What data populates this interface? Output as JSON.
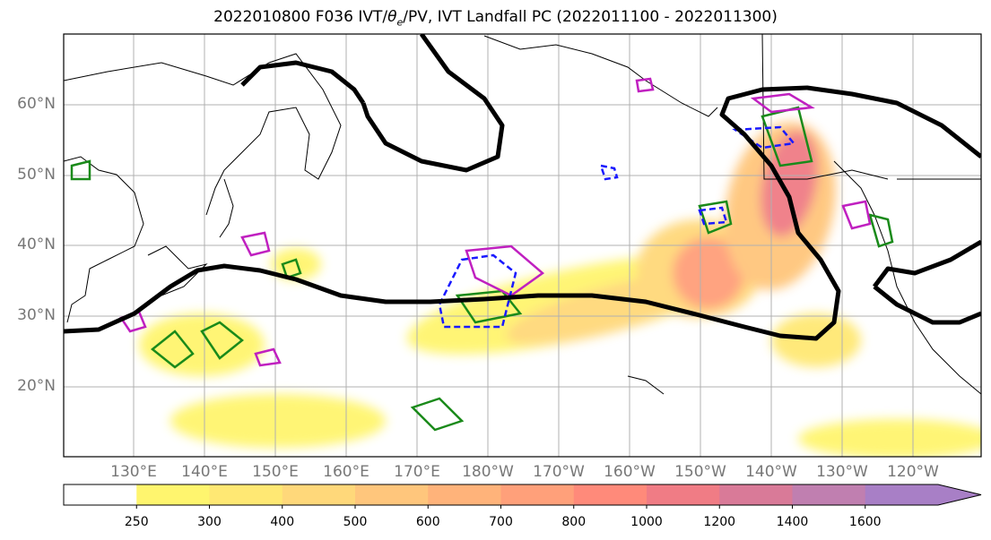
{
  "title": {
    "prefix": "2022010800 F036 IVT/",
    "theta": "θ",
    "sub": "e",
    "suffix": "/PV, IVT Landfall PC (2022011100 - 2022011300)"
  },
  "lat_labels": [
    "60°N",
    "50°N",
    "40°N",
    "30°N",
    "20°N"
  ],
  "lon_labels": [
    "130°E",
    "140°E",
    "150°E",
    "160°E",
    "170°E",
    "180°W",
    "170°W",
    "160°W",
    "150°W",
    "140°W",
    "130°W",
    "120°W"
  ],
  "colorbar": {
    "levels": [
      "250",
      "300",
      "400",
      "500",
      "600",
      "700",
      "800",
      "1000",
      "1200",
      "1400",
      "1600"
    ],
    "colors": [
      "#ffffff",
      "#fff56e",
      "#ffe873",
      "#ffd87a",
      "#ffc67c",
      "#ffb37a",
      "#ffa07a",
      "#ff8a7a",
      "#f07c85",
      "#d97a98",
      "#c07fb0",
      "#a87fc6"
    ]
  },
  "colors": {
    "ivt_contour": "#000000",
    "green_contour": "#1a8a1a",
    "magenta_contour": "#c020c0",
    "blue_contour": "#1a1aff",
    "coastline": "#000000",
    "grid": "#b0b0b0"
  }
}
